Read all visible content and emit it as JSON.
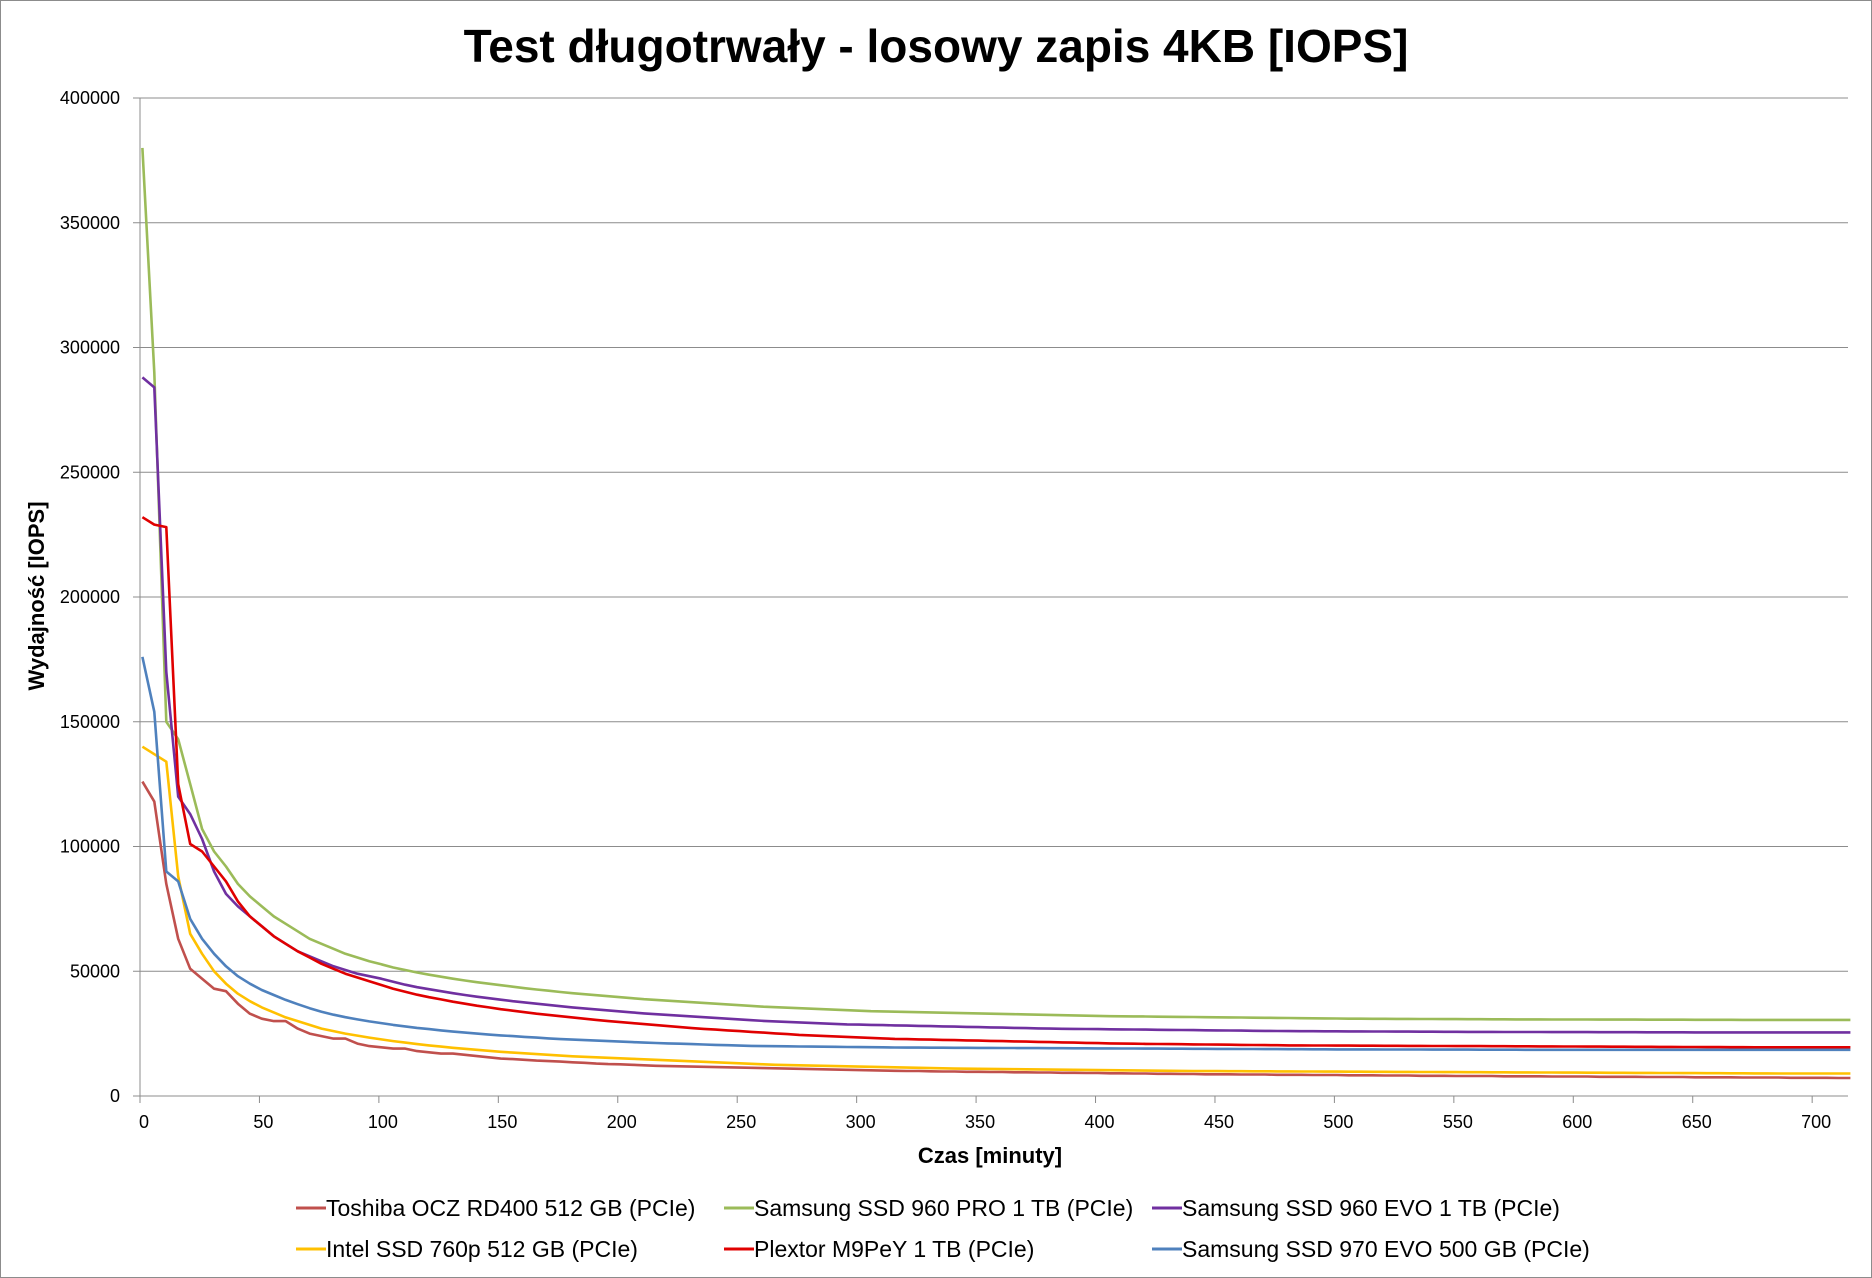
{
  "chart_data": {
    "type": "line",
    "title": "Test długotrwały - losowy zapis 4KB [IOPS]",
    "xlabel": "Czas [minuty]",
    "ylabel": "Wydajność [IOPS]",
    "xlim": [
      0,
      715
    ],
    "ylim": [
      0,
      400000
    ],
    "xticks": [
      "0",
      "50",
      "100",
      "150",
      "200",
      "250",
      "300",
      "350",
      "400",
      "450",
      "500",
      "550",
      "600",
      "650",
      "700"
    ],
    "yticks": [
      "0",
      "50000",
      "100000",
      "150000",
      "200000",
      "250000",
      "300000",
      "350000",
      "400000"
    ],
    "grid": "horizontal",
    "legend_position": "bottom",
    "x": [
      1,
      6,
      11,
      16,
      21,
      26,
      31,
      36,
      41,
      46,
      51,
      56,
      61,
      66,
      71,
      76,
      81,
      86,
      91,
      96,
      101,
      106,
      111,
      116,
      121,
      126,
      131,
      136,
      141,
      146,
      151,
      156,
      161,
      166,
      171,
      176,
      181,
      186,
      191,
      196,
      201,
      206,
      211,
      216,
      221,
      226,
      231,
      236,
      241,
      246,
      251,
      256,
      261,
      266,
      271,
      276,
      281,
      286,
      291,
      296,
      301,
      306,
      311,
      316,
      321,
      326,
      331,
      336,
      341,
      346,
      351,
      356,
      361,
      366,
      371,
      376,
      381,
      386,
      391,
      396,
      401,
      406,
      411,
      416,
      421,
      426,
      431,
      436,
      441,
      446,
      451,
      456,
      461,
      466,
      471,
      476,
      481,
      486,
      491,
      496,
      501,
      506,
      511,
      516,
      521,
      526,
      531,
      536,
      541,
      546,
      551,
      556,
      561,
      566,
      571,
      576,
      581,
      586,
      591,
      596,
      601,
      606,
      611,
      616,
      621,
      626,
      631,
      636,
      641,
      646,
      651,
      656,
      661,
      666,
      671,
      676,
      681,
      686,
      691,
      696,
      701,
      706,
      711,
      716
    ],
    "series": [
      {
        "name": "Toshiba OCZ RD400 512 GB (PCIe)",
        "color": "#c0504d",
        "values": [
          126000,
          118000,
          85000,
          63000,
          51000,
          47000,
          43000,
          42000,
          37000,
          33000,
          31000,
          30000,
          30000,
          27000,
          25000,
          24000,
          23000,
          23000,
          21000,
          20000,
          19500,
          19000,
          19000,
          18000,
          17500,
          17000,
          17000,
          16500,
          16000,
          15500,
          15000,
          14800,
          14500,
          14200,
          14000,
          13800,
          13500,
          13300,
          13000,
          12800,
          12700,
          12500,
          12300,
          12100,
          12000,
          11900,
          11800,
          11700,
          11600,
          11500,
          11400,
          11300,
          11200,
          11100,
          11000,
          10900,
          10800,
          10700,
          10600,
          10500,
          10400,
          10300,
          10200,
          10100,
          10000,
          10000,
          9900,
          9800,
          9800,
          9700,
          9700,
          9600,
          9600,
          9500,
          9500,
          9400,
          9400,
          9300,
          9300,
          9200,
          9200,
          9100,
          9100,
          9000,
          9000,
          8900,
          8900,
          8800,
          8800,
          8700,
          8700,
          8700,
          8600,
          8600,
          8600,
          8500,
          8500,
          8500,
          8400,
          8400,
          8400,
          8300,
          8300,
          8300,
          8200,
          8200,
          8200,
          8100,
          8100,
          8100,
          8000,
          8000,
          8000,
          8000,
          7900,
          7900,
          7900,
          7900,
          7800,
          7800,
          7800,
          7800,
          7700,
          7700,
          7700,
          7700,
          7600,
          7600,
          7600,
          7600,
          7500,
          7500,
          7500,
          7500,
          7400,
          7400,
          7400,
          7400,
          7300,
          7300,
          7300,
          7300,
          7200,
          7200
        ]
      },
      {
        "name": "Samsung SSD 960 PRO 1 TB (PCIe)",
        "color": "#9bbb59",
        "values": [
          380000,
          290000,
          150000,
          143000,
          125000,
          107000,
          98000,
          92000,
          85000,
          80000,
          76000,
          72000,
          69000,
          66000,
          63000,
          61000,
          59000,
          57000,
          55500,
          54000,
          52800,
          51500,
          50500,
          49500,
          48600,
          47800,
          47000,
          46300,
          45600,
          45000,
          44400,
          43800,
          43200,
          42700,
          42200,
          41700,
          41200,
          40800,
          40400,
          40000,
          39600,
          39200,
          38800,
          38500,
          38200,
          37900,
          37600,
          37300,
          37000,
          36700,
          36400,
          36100,
          35800,
          35600,
          35400,
          35200,
          35000,
          34800,
          34600,
          34400,
          34200,
          34000,
          33900,
          33800,
          33700,
          33600,
          33500,
          33400,
          33300,
          33200,
          33100,
          33000,
          32900,
          32800,
          32700,
          32600,
          32500,
          32400,
          32300,
          32200,
          32100,
          32000,
          31950,
          31900,
          31850,
          31800,
          31750,
          31700,
          31650,
          31600,
          31550,
          31500,
          31450,
          31400,
          31350,
          31300,
          31250,
          31200,
          31150,
          31100,
          31050,
          31000,
          30980,
          30960,
          30940,
          30920,
          30900,
          30880,
          30860,
          30840,
          30820,
          30800,
          30780,
          30760,
          30740,
          30720,
          30700,
          30690,
          30680,
          30670,
          30660,
          30650,
          30640,
          30630,
          30620,
          30610,
          30600,
          30590,
          30580,
          30570,
          30560,
          30550,
          30540,
          30530,
          30520,
          30510,
          30500,
          30500,
          30500,
          30500,
          30500,
          30500,
          30500,
          30500
        ]
      },
      {
        "name": "Samsung SSD 960 EVO 1 TB (PCIe)",
        "color": "#7030a0",
        "values": [
          288000,
          284000,
          170000,
          120000,
          113000,
          103000,
          90000,
          81000,
          76000,
          72000,
          68000,
          64000,
          61000,
          58000,
          56000,
          54000,
          52000,
          50500,
          49000,
          48000,
          47000,
          45800,
          44600,
          43600,
          42800,
          42000,
          41200,
          40500,
          39800,
          39200,
          38600,
          38000,
          37500,
          37000,
          36500,
          36000,
          35500,
          35100,
          34700,
          34300,
          33900,
          33500,
          33100,
          32800,
          32500,
          32200,
          31900,
          31600,
          31300,
          31000,
          30700,
          30400,
          30100,
          29900,
          29700,
          29500,
          29300,
          29100,
          28900,
          28700,
          28600,
          28500,
          28400,
          28300,
          28200,
          28100,
          28000,
          27900,
          27800,
          27700,
          27600,
          27500,
          27400,
          27300,
          27200,
          27100,
          27000,
          26950,
          26900,
          26850,
          26800,
          26750,
          26700,
          26650,
          26600,
          26550,
          26500,
          26450,
          26400,
          26350,
          26300,
          26250,
          26200,
          26150,
          26100,
          26050,
          26000,
          25980,
          25960,
          25940,
          25920,
          25900,
          25880,
          25860,
          25840,
          25820,
          25800,
          25780,
          25760,
          25740,
          25720,
          25700,
          25690,
          25680,
          25670,
          25660,
          25650,
          25640,
          25630,
          25620,
          25610,
          25600,
          25590,
          25580,
          25570,
          25560,
          25550,
          25540,
          25530,
          25520,
          25510,
          25500,
          25500,
          25500,
          25500,
          25500,
          25500,
          25500,
          25500,
          25500,
          25500,
          25500,
          25500,
          25500
        ]
      },
      {
        "name": "Intel SSD 760p 512 GB (PCIe)",
        "color": "#ffc000",
        "values": [
          140000,
          137000,
          134000,
          88000,
          65000,
          57000,
          50000,
          45000,
          41000,
          38000,
          35500,
          33500,
          31500,
          30000,
          28500,
          27000,
          26000,
          25000,
          24200,
          23400,
          22700,
          22000,
          21400,
          20800,
          20300,
          19800,
          19300,
          18900,
          18500,
          18100,
          17700,
          17400,
          17100,
          16800,
          16500,
          16200,
          15900,
          15700,
          15500,
          15300,
          15100,
          14900,
          14700,
          14500,
          14300,
          14100,
          13900,
          13700,
          13500,
          13300,
          13100,
          12900,
          12700,
          12500,
          12400,
          12300,
          12200,
          12100,
          12000,
          11900,
          11800,
          11700,
          11600,
          11500,
          11400,
          11300,
          11200,
          11100,
          11000,
          10950,
          10900,
          10850,
          10800,
          10750,
          10700,
          10650,
          10600,
          10550,
          10500,
          10450,
          10400,
          10350,
          10300,
          10250,
          10200,
          10150,
          10100,
          10050,
          10000,
          9980,
          9960,
          9940,
          9920,
          9900,
          9880,
          9860,
          9840,
          9820,
          9800,
          9780,
          9760,
          9740,
          9720,
          9700,
          9680,
          9660,
          9640,
          9620,
          9600,
          9580,
          9560,
          9540,
          9520,
          9500,
          9480,
          9460,
          9440,
          9420,
          9400,
          9380,
          9360,
          9340,
          9320,
          9300,
          9280,
          9260,
          9240,
          9220,
          9200,
          9180,
          9160,
          9140,
          9120,
          9100,
          9080,
          9060,
          9040,
          9020,
          9000,
          9000,
          9000,
          9000,
          9000,
          9000
        ]
      },
      {
        "name": "Plextor M9PeY 1 TB (PCIe)",
        "color": "#e00000",
        "values": [
          232000,
          229000,
          228000,
          125000,
          101000,
          98000,
          92000,
          86000,
          78000,
          72000,
          68000,
          64000,
          61000,
          58000,
          55500,
          53000,
          51000,
          49000,
          47500,
          46000,
          44500,
          43000,
          41800,
          40600,
          39600,
          38700,
          37800,
          37000,
          36200,
          35500,
          34800,
          34200,
          33600,
          33000,
          32500,
          32000,
          31500,
          31000,
          30500,
          30000,
          29600,
          29200,
          28800,
          28400,
          28000,
          27600,
          27200,
          26900,
          26600,
          26300,
          26000,
          25700,
          25400,
          25100,
          24800,
          24500,
          24300,
          24100,
          23900,
          23700,
          23500,
          23300,
          23100,
          22900,
          22800,
          22700,
          22600,
          22500,
          22400,
          22300,
          22200,
          22100,
          22000,
          21900,
          21800,
          21700,
          21600,
          21500,
          21400,
          21300,
          21200,
          21100,
          21000,
          20950,
          20900,
          20850,
          20800,
          20750,
          20700,
          20650,
          20600,
          20550,
          20500,
          20450,
          20400,
          20350,
          20300,
          20280,
          20260,
          20240,
          20220,
          20200,
          20180,
          20160,
          20140,
          20120,
          20100,
          20080,
          20060,
          20040,
          20020,
          20000,
          19980,
          19960,
          19940,
          19920,
          19900,
          19880,
          19860,
          19840,
          19820,
          19800,
          19780,
          19760,
          19740,
          19720,
          19700,
          19680,
          19660,
          19640,
          19620,
          19600,
          19580,
          19560,
          19540,
          19520,
          19500,
          19500,
          19500,
          19500,
          19500,
          19500,
          19500,
          19500
        ]
      },
      {
        "name": "Samsung SSD 970 EVO 500 GB (PCIe)",
        "color": "#4f81bd",
        "values": [
          176000,
          154000,
          90000,
          86000,
          71000,
          63000,
          57000,
          52000,
          48000,
          45000,
          42500,
          40500,
          38500,
          36800,
          35200,
          33800,
          32600,
          31600,
          30700,
          29900,
          29200,
          28500,
          27900,
          27300,
          26800,
          26300,
          25800,
          25400,
          25000,
          24600,
          24300,
          24000,
          23700,
          23400,
          23100,
          22800,
          22600,
          22400,
          22200,
          22000,
          21800,
          21600,
          21400,
          21250,
          21100,
          20950,
          20800,
          20650,
          20500,
          20350,
          20200,
          20100,
          20000,
          19950,
          19900,
          19850,
          19800,
          19750,
          19700,
          19650,
          19600,
          19550,
          19500,
          19450,
          19400,
          19380,
          19360,
          19340,
          19320,
          19300,
          19280,
          19260,
          19240,
          19220,
          19200,
          19180,
          19160,
          19140,
          19120,
          19100,
          19080,
          19060,
          19040,
          19020,
          19000,
          18980,
          18960,
          18940,
          18920,
          18900,
          18880,
          18860,
          18840,
          18820,
          18800,
          18780,
          18760,
          18740,
          18720,
          18700,
          18690,
          18680,
          18670,
          18660,
          18650,
          18640,
          18630,
          18620,
          18610,
          18600,
          18590,
          18580,
          18570,
          18560,
          18550,
          18540,
          18530,
          18520,
          18510,
          18500,
          18500,
          18500,
          18500,
          18500,
          18500,
          18500,
          18500,
          18500,
          18500,
          18500,
          18500,
          18500,
          18500,
          18500,
          18500,
          18500,
          18500,
          18500,
          18500,
          18500,
          18500,
          18500,
          18500,
          18500
        ]
      }
    ]
  }
}
